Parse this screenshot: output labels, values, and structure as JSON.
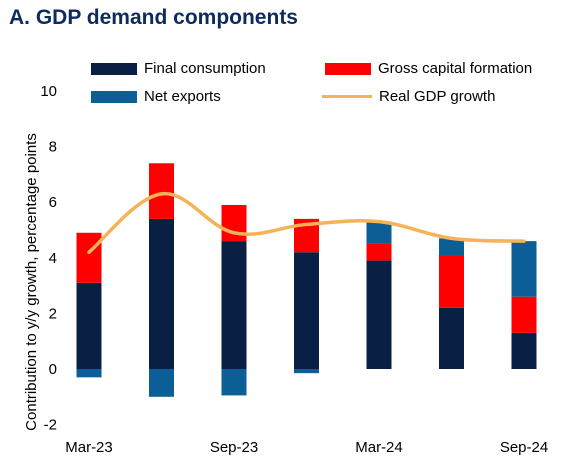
{
  "title": "A. GDP demand components",
  "chart_data": {
    "type": "bar",
    "stacked": true,
    "categories": [
      "Mar-23",
      "Jun-23",
      "Sep-23",
      "Dec-23",
      "Mar-24",
      "Jun-24",
      "Sep-24"
    ],
    "x_tick_labels": [
      "Mar-23",
      "Sep-23",
      "Mar-24",
      "Sep-24"
    ],
    "ylabel": "Contribution to y/y growth, percentage points",
    "ylim": [
      -2,
      10
    ],
    "yticks": [
      "-2",
      "0",
      "2",
      "4",
      "6",
      "8",
      "10"
    ],
    "grid": false,
    "legend_position": "top",
    "series": [
      {
        "name": "Final consumption",
        "color": "#0a1f44",
        "values": [
          3.1,
          5.4,
          4.6,
          4.2,
          3.9,
          2.2,
          1.3
        ]
      },
      {
        "name": "Gross capital formation",
        "color": "#ff0000",
        "values": [
          1.8,
          2.0,
          1.3,
          1.2,
          0.6,
          1.9,
          1.3
        ]
      },
      {
        "name": "Net exports",
        "color": "#0b5e96",
        "values": [
          -0.3,
          -1.0,
          -0.95,
          -0.15,
          0.8,
          0.6,
          2.0
        ]
      }
    ],
    "line": {
      "name": "Real GDP growth",
      "color": "#f5b256",
      "values": [
        4.2,
        6.3,
        4.9,
        5.2,
        5.3,
        4.7,
        4.6
      ]
    }
  }
}
